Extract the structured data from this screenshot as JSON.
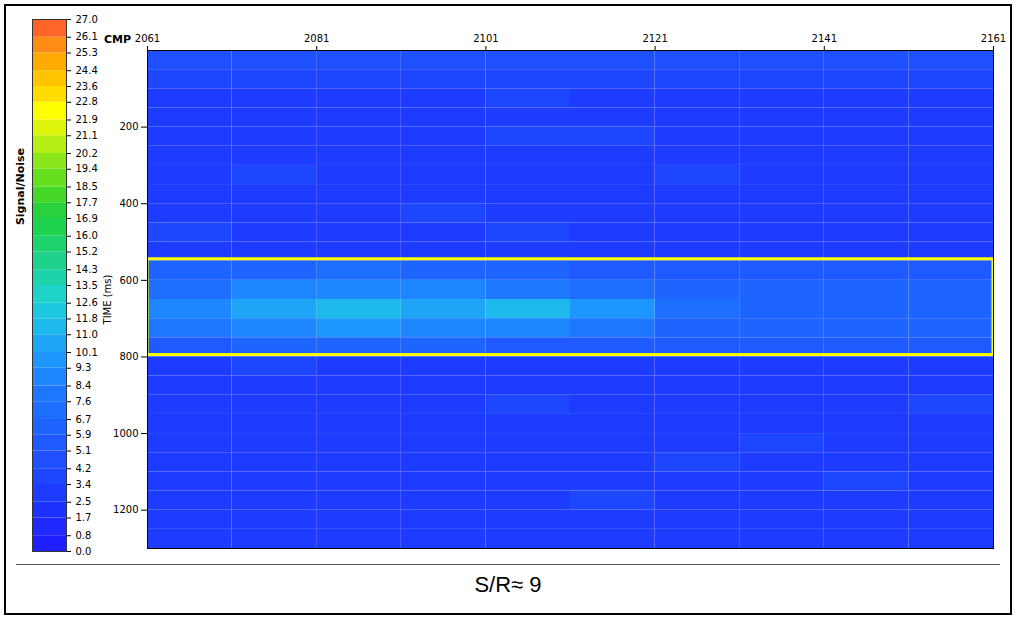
{
  "chart_data": {
    "type": "heatmap",
    "caption": "S/R≈ 9",
    "x_label": "CMP",
    "y_label": "TIME (ms)",
    "xlim": [
      2061,
      2161
    ],
    "xticks": [
      2061,
      2081,
      2101,
      2121,
      2141,
      2161
    ],
    "ylim": [
      0,
      1300
    ],
    "yticks": [
      200,
      400,
      600,
      800,
      1000,
      1200
    ],
    "cmp_edges": [
      2061,
      2071,
      2081,
      2091,
      2101,
      2111,
      2121,
      2131,
      2141,
      2151,
      2161
    ],
    "time_edges": [
      0,
      50,
      100,
      150,
      200,
      250,
      300,
      350,
      400,
      450,
      500,
      550,
      600,
      650,
      700,
      750,
      800,
      850,
      900,
      950,
      1000,
      1050,
      1100,
      1150,
      1200,
      1250,
      1300
    ],
    "values": [
      [
        4.6,
        4.6,
        4.6,
        4.6,
        4.6,
        4.6,
        4.6,
        4.6,
        4.6,
        4.6
      ],
      [
        3.8,
        3.6,
        3.9,
        3.7,
        3.8,
        3.6,
        3.7,
        3.9,
        3.8,
        3.6
      ],
      [
        3.2,
        3.0,
        3.3,
        3.1,
        3.4,
        3.2,
        3.0,
        3.1,
        3.3,
        3.2
      ],
      [
        2.8,
        3.0,
        2.9,
        3.1,
        3.0,
        2.8,
        2.9,
        3.0,
        3.1,
        2.9
      ],
      [
        3.1,
        3.3,
        3.0,
        3.2,
        3.5,
        3.4,
        3.1,
        3.0,
        3.2,
        3.1
      ],
      [
        3.0,
        2.9,
        3.1,
        3.3,
        3.0,
        2.8,
        2.9,
        3.1,
        3.0,
        2.8
      ],
      [
        3.3,
        3.4,
        3.2,
        3.0,
        3.1,
        3.3,
        3.5,
        3.2,
        3.0,
        3.1
      ],
      [
        2.9,
        3.1,
        3.0,
        2.8,
        2.9,
        3.1,
        3.0,
        2.9,
        2.8,
        3.0
      ],
      [
        3.2,
        3.0,
        3.3,
        3.4,
        3.2,
        3.1,
        3.0,
        3.2,
        3.3,
        3.1
      ],
      [
        3.4,
        3.2,
        3.1,
        3.3,
        3.5,
        3.3,
        3.2,
        3.0,
        3.1,
        3.3
      ],
      [
        3.0,
        3.1,
        3.2,
        3.0,
        2.9,
        3.1,
        3.0,
        2.9,
        3.0,
        3.1
      ],
      [
        6.2,
        6.5,
        6.8,
        6.4,
        6.0,
        5.8,
        5.5,
        5.3,
        5.6,
        5.4
      ],
      [
        7.5,
        8.4,
        9.0,
        8.6,
        8.0,
        7.2,
        6.4,
        6.0,
        6.3,
        6.1
      ],
      [
        8.8,
        10.4,
        11.2,
        10.6,
        11.0,
        9.5,
        7.0,
        6.2,
        6.5,
        6.3
      ],
      [
        7.8,
        8.6,
        9.4,
        9.0,
        8.8,
        7.6,
        6.5,
        6.0,
        6.1,
        5.9
      ],
      [
        5.8,
        6.0,
        6.2,
        6.0,
        5.7,
        5.5,
        5.3,
        5.4,
        5.5,
        5.2
      ],
      [
        3.2,
        3.4,
        3.1,
        3.3,
        3.2,
        3.0,
        3.1,
        3.3,
        3.2,
        3.0
      ],
      [
        3.0,
        2.9,
        3.2,
        3.1,
        3.0,
        3.3,
        3.2,
        3.0,
        2.9,
        3.1
      ],
      [
        3.3,
        3.1,
        3.0,
        3.2,
        3.4,
        3.1,
        3.0,
        3.2,
        3.3,
        3.4
      ],
      [
        2.9,
        3.0,
        3.1,
        2.9,
        3.0,
        3.2,
        3.1,
        2.9,
        3.0,
        3.2
      ],
      [
        3.1,
        3.2,
        3.3,
        3.1,
        3.0,
        2.9,
        3.2,
        3.4,
        3.3,
        3.1
      ],
      [
        3.2,
        3.3,
        3.1,
        3.0,
        3.2,
        3.3,
        3.4,
        3.2,
        3.1,
        3.3
      ],
      [
        3.0,
        3.1,
        3.2,
        3.3,
        3.1,
        3.0,
        3.2,
        3.3,
        3.4,
        3.2
      ],
      [
        3.3,
        3.2,
        3.0,
        3.1,
        3.3,
        3.4,
        3.3,
        3.1,
        3.2,
        3.0
      ],
      [
        3.1,
        3.0,
        3.2,
        3.3,
        3.2,
        3.1,
        3.0,
        3.2,
        3.1,
        3.3
      ],
      [
        3.2,
        3.3,
        3.1,
        3.0,
        3.1,
        3.2,
        3.3,
        3.1,
        3.0,
        3.2
      ]
    ],
    "colorbar": {
      "label": "Signal/Noise",
      "range": [
        0,
        27
      ],
      "ticks": [
        {
          "value": 0,
          "label": "0.0"
        },
        0.8,
        1.7,
        2.5,
        3.4,
        4.2,
        5.1,
        5.9,
        6.7,
        7.6,
        8.4,
        9.3,
        10.1,
        {
          "value": 11,
          "label": "11.0"
        },
        11.8,
        12.6,
        13.5,
        14.3,
        15.2,
        {
          "value": 16,
          "label": "16.0"
        },
        16.9,
        17.7,
        18.5,
        19.4,
        20.2,
        21.1,
        21.9,
        22.8,
        23.6,
        24.4,
        25.3,
        26.1,
        {
          "value": 27,
          "label": "27.0"
        }
      ],
      "colors": [
        "#1e1eff",
        "#1e28ff",
        "#1e32ff",
        "#1e3cff",
        "#1e46ff",
        "#1e50ff",
        "#1e5aff",
        "#1e64ff",
        "#1e6eff",
        "#1e78ff",
        "#1e87ff",
        "#1e96ff",
        "#1ea5f5",
        "#1eb9eb",
        "#1ec8e1",
        "#1ed2c8",
        "#1ed2aa",
        "#1ed28c",
        "#1ed26e",
        "#1ed250",
        "#28d23c",
        "#46d828",
        "#64e01e",
        "#8ce61e",
        "#b4ee14",
        "#dcf50a",
        "#ffff00",
        "#ffdc00",
        "#ffc300",
        "#ffaa00",
        "#ff8c14",
        "#ff6428"
      ]
    },
    "annotation_box": {
      "x": [
        2061,
        2161
      ],
      "y": [
        545,
        795
      ],
      "color": "#ffff00"
    }
  }
}
